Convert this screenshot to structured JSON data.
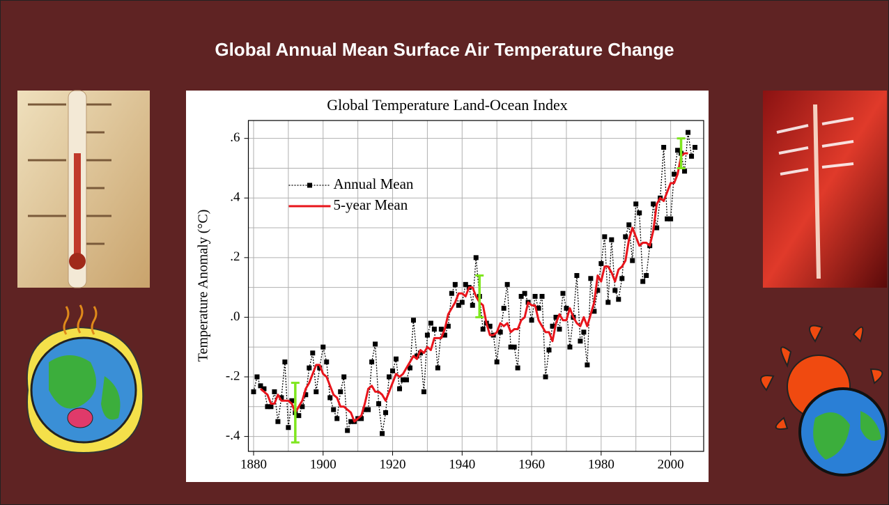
{
  "slide_title": "Global Annual Mean Surface Air Temperature Change",
  "chart_data": {
    "type": "line",
    "title": "Global Temperature Land-Ocean Index",
    "y_label": "Temperature Anomaly (°C)",
    "x": [
      1880,
      1881,
      1882,
      1883,
      1884,
      1885,
      1886,
      1887,
      1888,
      1889,
      1890,
      1891,
      1892,
      1893,
      1894,
      1895,
      1896,
      1897,
      1898,
      1899,
      1900,
      1901,
      1902,
      1903,
      1904,
      1905,
      1906,
      1907,
      1908,
      1909,
      1910,
      1911,
      1912,
      1913,
      1914,
      1915,
      1916,
      1917,
      1918,
      1919,
      1920,
      1921,
      1922,
      1923,
      1924,
      1925,
      1926,
      1927,
      1928,
      1929,
      1930,
      1931,
      1932,
      1933,
      1934,
      1935,
      1936,
      1937,
      1938,
      1939,
      1940,
      1941,
      1942,
      1943,
      1944,
      1945,
      1946,
      1947,
      1948,
      1949,
      1950,
      1951,
      1952,
      1953,
      1954,
      1955,
      1956,
      1957,
      1958,
      1959,
      1960,
      1961,
      1962,
      1963,
      1964,
      1965,
      1966,
      1967,
      1968,
      1969,
      1970,
      1971,
      1972,
      1973,
      1974,
      1975,
      1976,
      1977,
      1978,
      1979,
      1980,
      1981,
      1982,
      1983,
      1984,
      1985,
      1986,
      1987,
      1988,
      1989,
      1990,
      1991,
      1992,
      1993,
      1994,
      1995,
      1996,
      1997,
      1998,
      1999,
      2000,
      2001,
      2002,
      2003,
      2004,
      2005,
      2006,
      2007
    ],
    "series": [
      {
        "name": "Annual Mean",
        "color": "#000000",
        "line_style": "dotted",
        "marker": "square",
        "values": [
          -0.25,
          -0.2,
          -0.23,
          -0.24,
          -0.3,
          -0.3,
          -0.25,
          -0.35,
          -0.27,
          -0.15,
          -0.37,
          -0.28,
          -0.32,
          -0.33,
          -0.3,
          -0.26,
          -0.17,
          -0.12,
          -0.25,
          -0.17,
          -0.1,
          -0.15,
          -0.27,
          -0.31,
          -0.34,
          -0.25,
          -0.2,
          -0.38,
          -0.35,
          -0.35,
          -0.34,
          -0.34,
          -0.31,
          -0.31,
          -0.15,
          -0.09,
          -0.29,
          -0.39,
          -0.32,
          -0.2,
          -0.18,
          -0.14,
          -0.24,
          -0.21,
          -0.21,
          -0.17,
          -0.01,
          -0.13,
          -0.12,
          -0.25,
          -0.06,
          -0.02,
          -0.04,
          -0.17,
          -0.04,
          -0.06,
          -0.03,
          0.08,
          0.11,
          0.04,
          0.05,
          0.11,
          0.1,
          0.04,
          0.2,
          0.07,
          -0.04,
          -0.02,
          -0.03,
          -0.06,
          -0.15,
          -0.05,
          0.03,
          0.11,
          -0.1,
          -0.1,
          -0.17,
          0.07,
          0.08,
          0.05,
          -0.01,
          0.07,
          0.03,
          0.07,
          -0.2,
          -0.11,
          -0.03,
          0.0,
          -0.04,
          0.08,
          0.03,
          -0.1,
          0.0,
          0.14,
          -0.08,
          -0.05,
          -0.16,
          0.13,
          0.02,
          0.09,
          0.18,
          0.27,
          0.05,
          0.26,
          0.09,
          0.06,
          0.13,
          0.27,
          0.31,
          0.19,
          0.38,
          0.35,
          0.12,
          0.14,
          0.24,
          0.38,
          0.3,
          0.4,
          0.57,
          0.33,
          0.33,
          0.48,
          0.56,
          0.55,
          0.49,
          0.62,
          0.54,
          0.57
        ]
      },
      {
        "name": "5-year Mean",
        "color": "#e8141b",
        "line_style": "solid",
        "marker": "none",
        "values": [
          null,
          null,
          -0.24,
          -0.25,
          -0.26,
          -0.29,
          -0.29,
          -0.26,
          -0.28,
          -0.28,
          -0.28,
          -0.29,
          -0.32,
          -0.3,
          -0.28,
          -0.24,
          -0.22,
          -0.19,
          -0.16,
          -0.16,
          -0.19,
          -0.2,
          -0.23,
          -0.26,
          -0.27,
          -0.3,
          -0.3,
          -0.31,
          -0.32,
          -0.35,
          -0.34,
          -0.33,
          -0.29,
          -0.24,
          -0.23,
          -0.25,
          -0.25,
          -0.26,
          -0.28,
          -0.25,
          -0.22,
          -0.19,
          -0.2,
          -0.19,
          -0.17,
          -0.15,
          -0.13,
          -0.14,
          -0.11,
          -0.12,
          -0.1,
          -0.11,
          -0.07,
          -0.07,
          -0.07,
          -0.04,
          0.01,
          0.03,
          0.05,
          0.08,
          0.08,
          0.07,
          0.1,
          0.1,
          0.07,
          0.05,
          0.04,
          -0.02,
          -0.06,
          -0.06,
          -0.05,
          -0.02,
          -0.03,
          -0.02,
          -0.05,
          -0.04,
          -0.04,
          -0.01,
          0.0,
          0.05,
          0.04,
          0.04,
          -0.01,
          -0.03,
          -0.05,
          -0.05,
          -0.08,
          -0.02,
          0.01,
          -0.01,
          -0.01,
          0.03,
          0.0,
          -0.02,
          -0.03,
          0.0,
          -0.03,
          0.01,
          0.05,
          0.14,
          0.12,
          0.17,
          0.17,
          0.15,
          0.12,
          0.16,
          0.17,
          0.19,
          0.26,
          0.3,
          0.27,
          0.24,
          0.25,
          0.25,
          0.24,
          0.29,
          0.38,
          0.4,
          0.39,
          0.42,
          0.45,
          0.45,
          0.48,
          0.54,
          0.55,
          0.55,
          null,
          null
        ]
      }
    ],
    "error_bars": {
      "color": "#7fe61e",
      "points": [
        {
          "x": 1892,
          "value": -0.32,
          "error": 0.1
        },
        {
          "x": 1945,
          "value": 0.07,
          "error": 0.07
        },
        {
          "x": 2003,
          "value": 0.55,
          "error": 0.05
        }
      ]
    },
    "xlim": [
      1878.5,
      2009.5
    ],
    "xticks": [
      1880,
      1900,
      1920,
      1940,
      1960,
      1980,
      2000
    ],
    "xminorticks": [
      1890,
      1910,
      1930,
      1950,
      1970,
      1990
    ],
    "ylim": [
      -0.45,
      0.66
    ],
    "yticks": [
      {
        "value": -0.4,
        "label": "-.4"
      },
      {
        "value": -0.2,
        "label": "-.2"
      },
      {
        "value": 0,
        "label": ".0"
      },
      {
        "value": 0.2,
        "label": ".2"
      },
      {
        "value": 0.4,
        "label": ".4"
      },
      {
        "value": 0.6,
        "label": ".6"
      }
    ],
    "yminorticks": [
      -0.3,
      -0.1,
      0.1,
      0.3,
      0.5
    ],
    "grid": true,
    "legend": "upper left"
  }
}
